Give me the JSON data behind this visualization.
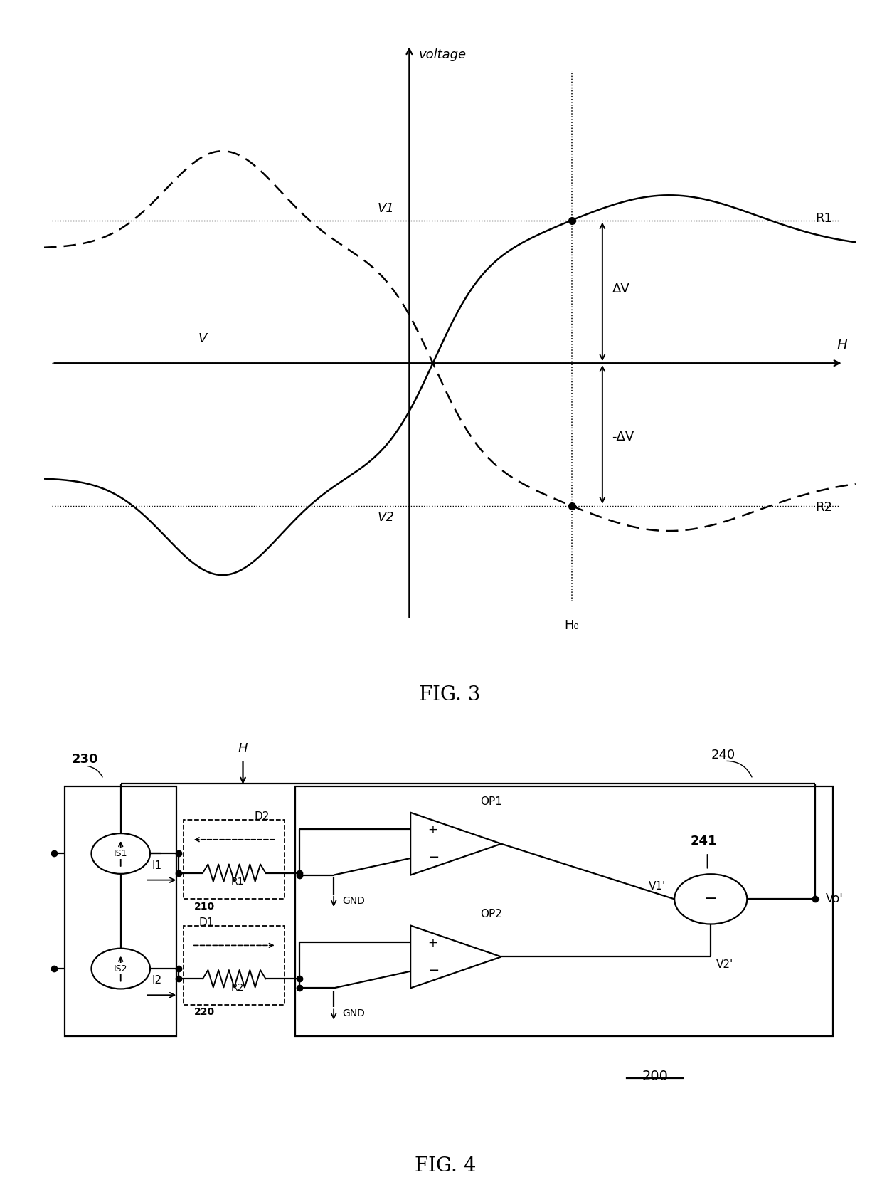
{
  "fig3": {
    "title": "FIG. 3",
    "voltage_label": "voltage",
    "H_label": "H",
    "H0_label": "H₀",
    "V_label": "V",
    "V1_label": "V1",
    "V2_label": "V2",
    "deltaV_label": "ΔV",
    "neg_deltaV_label": "-ΔV",
    "R1_label": "R1",
    "R2_label": "R2"
  },
  "fig4": {
    "title": "FIG. 4",
    "label_230": "230",
    "label_240": "240",
    "label_241": "241",
    "label_210": "210",
    "label_220": "220",
    "label_200": "200",
    "label_IS1": "IS1",
    "label_IS2": "IS2",
    "label_R1": "R1",
    "label_R2": "R2",
    "label_D1": "D1",
    "label_D2": "D2",
    "label_I1": "I1",
    "label_I2": "I2",
    "label_H": "H",
    "label_OP1": "OP1",
    "label_OP2": "OP2",
    "label_GND": "GND",
    "label_V1p": "V1'",
    "label_V2p": "V2'",
    "label_Vop": "Vo'"
  },
  "background_color": "#ffffff",
  "line_color": "#000000"
}
